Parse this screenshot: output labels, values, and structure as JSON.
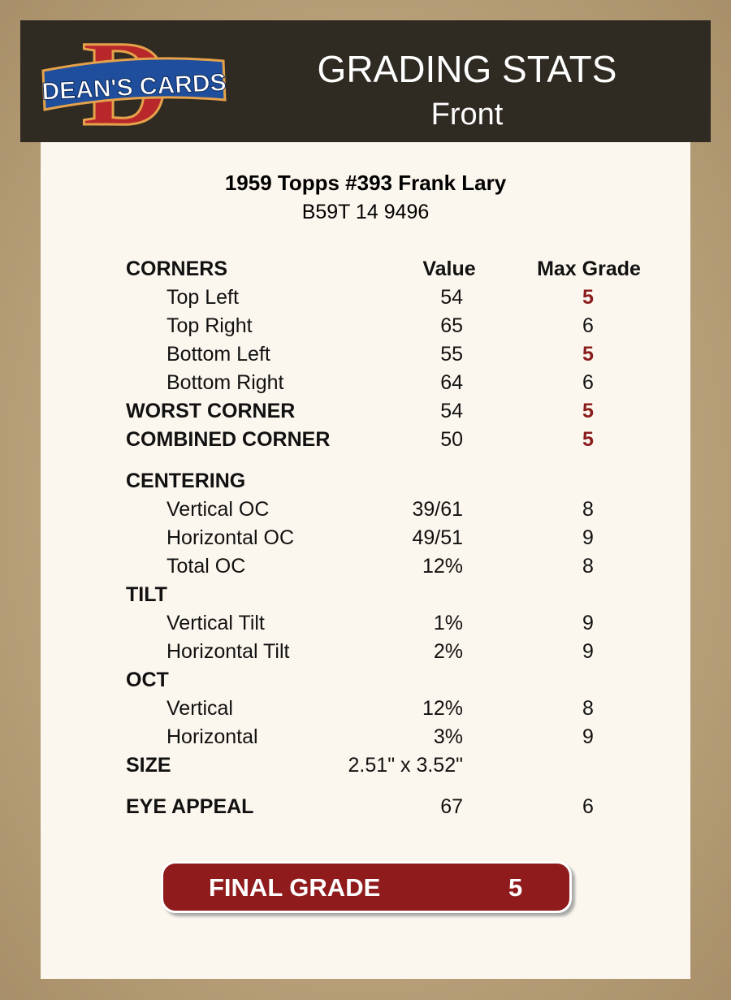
{
  "logo": {
    "letter": "D",
    "text": "DEAN'S CARDS"
  },
  "header": {
    "title": "GRADING STATS",
    "subtitle": "Front"
  },
  "card": {
    "title": "1959 Topps #393 Frank Lary",
    "code": "B59T 14 9496"
  },
  "table": {
    "first_heading": "CORNERS",
    "columns": [
      "Value",
      "Max Grade"
    ],
    "groups": [
      [
        {
          "label": "Top Left",
          "value": "54",
          "max": "5",
          "sub": true
        },
        {
          "label": "Top Right",
          "value": "65",
          "max": "6",
          "sub": true
        },
        {
          "label": "Bottom Left",
          "value": "55",
          "max": "5",
          "sub": true
        },
        {
          "label": "Bottom Right",
          "value": "64",
          "max": "6",
          "sub": true
        },
        {
          "label": "WORST CORNER",
          "value": "54",
          "max": "5"
        },
        {
          "label": "COMBINED CORNER",
          "value": "50",
          "max": "5"
        }
      ],
      [
        {
          "label": "CENTERING"
        },
        {
          "label": "Vertical OC",
          "value": "39/61",
          "max": "8",
          "sub": true
        },
        {
          "label": "Horizontal OC",
          "value": "49/51",
          "max": "9",
          "sub": true
        },
        {
          "label": "Total OC",
          "value": "12%",
          "max": "8",
          "sub": true
        },
        {
          "label": "TILT"
        },
        {
          "label": "Vertical Tilt",
          "value": "1%",
          "max": "9",
          "sub": true
        },
        {
          "label": "Horizontal Tilt",
          "value": "2%",
          "max": "9",
          "sub": true
        },
        {
          "label": "OCT"
        },
        {
          "label": "Vertical",
          "value": "12%",
          "max": "8",
          "sub": true
        },
        {
          "label": "Horizontal",
          "value": "3%",
          "max": "9",
          "sub": true
        },
        {
          "label": "SIZE",
          "value": "2.51\" x 3.52\""
        }
      ],
      [
        {
          "label": "EYE APPEAL",
          "value": "67",
          "max": "6"
        }
      ]
    ]
  },
  "final": {
    "label": "FINAL GRADE",
    "grade": "5"
  }
}
